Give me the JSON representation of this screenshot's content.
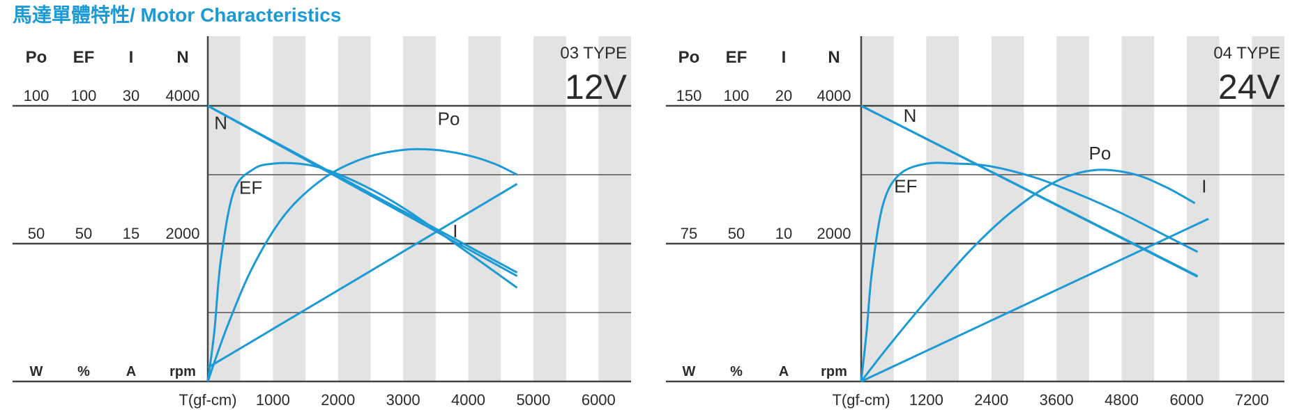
{
  "page": {
    "title": "馬達單體特性/ Motor Characteristics"
  },
  "colors": {
    "accent": "#1b9ad6",
    "band": "#e3e3e3",
    "text": "#2b2b2b"
  },
  "chart_data": [
    {
      "type": "line",
      "type_label": "03 TYPE",
      "voltage": "12V",
      "xlabel": "T(gf-cm)",
      "x_ticks": [
        "1000",
        "2000",
        "3000",
        "4000",
        "5000",
        "6000"
      ],
      "xlim": [
        0,
        6500
      ],
      "columns": [
        {
          "header": "Po",
          "max": "100",
          "mid": "50",
          "unit": "W"
        },
        {
          "header": "EF",
          "max": "100",
          "mid": "50",
          "unit": "%"
        },
        {
          "header": "I",
          "max": "30",
          "mid": "15",
          "unit": "A"
        },
        {
          "header": "N",
          "max": "4000",
          "mid": "2000",
          "unit": "rpm"
        }
      ],
      "series": [
        {
          "name": "N",
          "x": [
            0,
            4750
          ],
          "y": [
            4000,
            1530
          ]
        },
        {
          "name": "N",
          "x": [
            0,
            4750
          ],
          "y": [
            4000,
            1580
          ]
        },
        {
          "name": "I",
          "x": [
            0,
            4750
          ],
          "y": [
            1.5,
            21.5
          ]
        },
        {
          "name": "EF",
          "x": [
            0,
            100,
            200,
            400,
            700,
            1000,
            1400,
            1800,
            2400,
            3000,
            3800,
            4750
          ],
          "y": [
            0,
            18,
            44,
            69,
            77,
            79,
            79,
            77,
            71,
            63,
            50,
            34
          ]
        },
        {
          "name": "Po",
          "x": [
            0,
            300,
            700,
            1200,
            1800,
            2400,
            3000,
            3500,
            4000,
            4400,
            4750
          ],
          "y": [
            0,
            20,
            42,
            61,
            74,
            81,
            84,
            84,
            82,
            79,
            75
          ]
        }
      ],
      "labels": [
        {
          "text": "N",
          "x": 200,
          "y": 3660
        },
        {
          "text": "EF",
          "x": 660,
          "y": 2720
        },
        {
          "text": "I",
          "x": 3800,
          "y": 2090
        },
        {
          "text": "Po",
          "x": 3700,
          "y": 3720
        }
      ]
    },
    {
      "type": "line",
      "type_label": "04 TYPE",
      "voltage": "24V",
      "xlabel": "T(gf-cm)",
      "x_ticks": [
        "1200",
        "2400",
        "3600",
        "4800",
        "6000",
        "7200"
      ],
      "xlim": [
        0,
        7800
      ],
      "columns": [
        {
          "header": "Po",
          "max": "150",
          "mid": "75",
          "unit": "W"
        },
        {
          "header": "EF",
          "max": "100",
          "mid": "50",
          "unit": "%"
        },
        {
          "header": "I",
          "max": "20",
          "mid": "10",
          "unit": "A"
        },
        {
          "header": "N",
          "max": "4000",
          "mid": "2000",
          "unit": "rpm"
        }
      ],
      "series": [
        {
          "name": "N",
          "x": [
            0,
            6200
          ],
          "y": [
            4000,
            1520
          ]
        },
        {
          "name": "N",
          "x": [
            0,
            6200
          ],
          "y": [
            4000,
            1530
          ]
        },
        {
          "name": "I",
          "x": [
            0,
            6400
          ],
          "y": [
            0,
            11.8
          ]
        },
        {
          "name": "EF",
          "x": [
            0,
            100,
            200,
            400,
            700,
            1200,
            1800,
            2400,
            3200,
            4000,
            4800,
            5600,
            6200
          ],
          "y": [
            0,
            18,
            40,
            64,
            75,
            79,
            79,
            78,
            74,
            68,
            61,
            53,
            47
          ]
        },
        {
          "name": "Po",
          "x": [
            0,
            500,
            1200,
            2000,
            2800,
            3600,
            4300,
            5000,
            5600,
            6150
          ],
          "y": [
            0,
            19,
            44,
            71,
            93,
            109,
            115,
            113,
            106,
            97
          ]
        }
      ],
      "labels": [
        {
          "text": "N",
          "x": 900,
          "y": 3770
        },
        {
          "text": "EF",
          "x": 820,
          "y": 2740
        },
        {
          "text": "Po",
          "x": 4400,
          "y": 3220
        },
        {
          "text": "I",
          "x": 6320,
          "y": 2740
        }
      ]
    }
  ]
}
